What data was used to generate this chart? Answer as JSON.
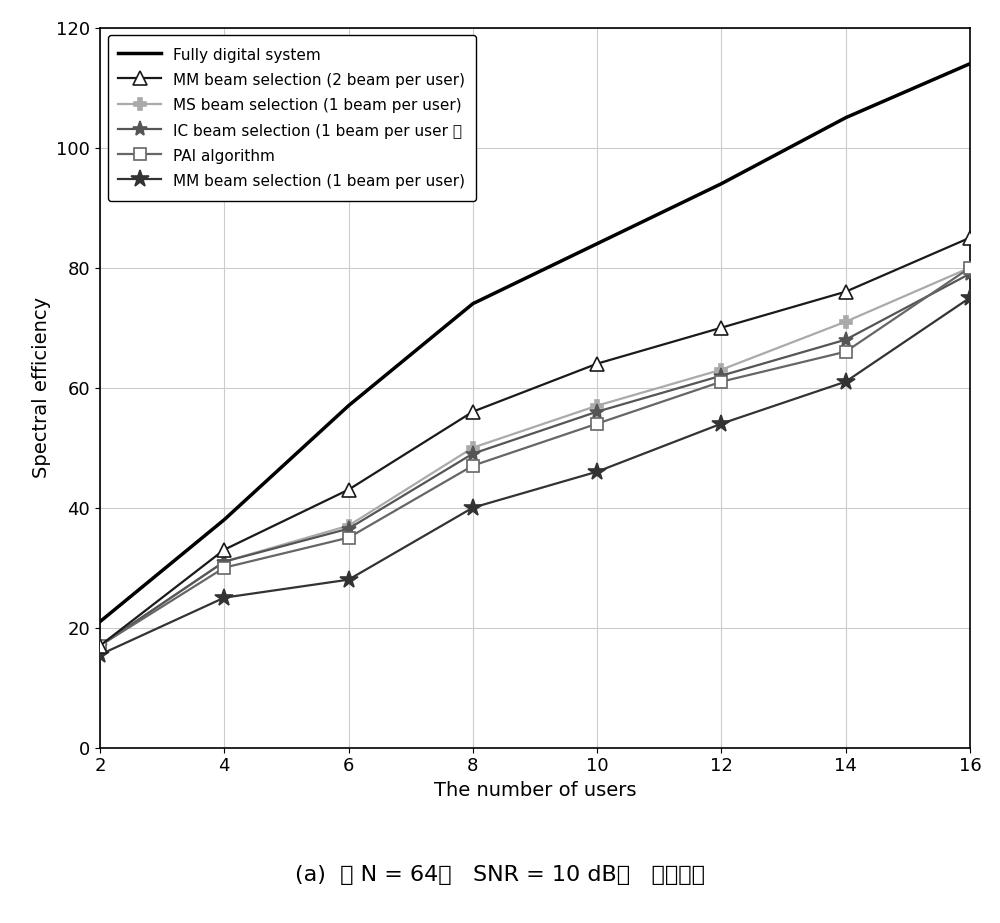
{
  "x": [
    2,
    4,
    6,
    8,
    10,
    12,
    14,
    16
  ],
  "series": [
    {
      "key": "fully_digital",
      "label": "Fully digital system",
      "color": "#000000",
      "linewidth": 2.5,
      "linestyle": "-",
      "marker": null,
      "markersize": 0,
      "markerfacecolor": "#000000",
      "values": [
        21.0,
        38.0,
        57.0,
        74.0,
        84.0,
        94.0,
        105.0,
        114.0
      ]
    },
    {
      "key": "mm_beam_2",
      "label": "MM beam selection (2 beam per user)",
      "color": "#1a1a1a",
      "linewidth": 1.6,
      "linestyle": "-",
      "marker": "^",
      "markersize": 10,
      "markerfacecolor": "white",
      "values": [
        17.0,
        33.0,
        43.0,
        56.0,
        64.0,
        70.0,
        76.0,
        85.0
      ]
    },
    {
      "key": "ms_beam_1",
      "label": "MS beam selection (1 beam per user)",
      "color": "#aaaaaa",
      "linewidth": 1.6,
      "linestyle": "-",
      "marker": "P",
      "markersize": 9,
      "markerfacecolor": "#aaaaaa",
      "values": [
        17.0,
        31.0,
        37.0,
        50.0,
        57.0,
        63.0,
        71.0,
        80.0
      ]
    },
    {
      "key": "ic_beam_1",
      "label": "IC beam selection (1 beam per user ）",
      "color": "#555555",
      "linewidth": 1.6,
      "linestyle": "-",
      "marker": "*",
      "markersize": 11,
      "markerfacecolor": "#555555",
      "values": [
        17.0,
        31.0,
        36.5,
        49.0,
        56.0,
        62.0,
        68.0,
        79.0
      ]
    },
    {
      "key": "pai_algorithm",
      "label": "PAI algorithm",
      "color": "#666666",
      "linewidth": 1.6,
      "linestyle": "-",
      "marker": "s",
      "markersize": 8,
      "markerfacecolor": "white",
      "values": [
        17.0,
        30.0,
        35.0,
        47.0,
        54.0,
        61.0,
        66.0,
        80.0
      ]
    },
    {
      "key": "mm_beam_1",
      "label": "MM beam selection (1 beam per user)",
      "color": "#333333",
      "linewidth": 1.6,
      "linestyle": "-",
      "marker": "*",
      "markersize": 13,
      "markerfacecolor": "#333333",
      "values": [
        15.5,
        25.0,
        28.0,
        40.0,
        46.0,
        54.0,
        61.0,
        75.0
      ]
    }
  ],
  "xlabel": "The number of users",
  "ylabel": "Spectral efficiency",
  "xlim": [
    2,
    16
  ],
  "ylim": [
    0,
    120
  ],
  "yticks": [
    0,
    20,
    40,
    60,
    80,
    100,
    120
  ],
  "xticks": [
    2,
    4,
    6,
    8,
    10,
    12,
    14,
    16
  ],
  "caption_parts": {
    "prefix": "(a)  当 ",
    "N_label": "N",
    "eq1": " = 64，   ",
    "SNR_label": "SNR",
    "eq2": " = 10 dB，   ",
    "suffix": "频谱效率"
  },
  "figsize": [
    10.0,
    9.23
  ],
  "dpi": 100,
  "bg_color": "#ffffff",
  "grid_color": "#cccccc",
  "legend_fontsize": 11,
  "axis_fontsize": 14,
  "tick_fontsize": 13,
  "caption_fontsize": 16
}
